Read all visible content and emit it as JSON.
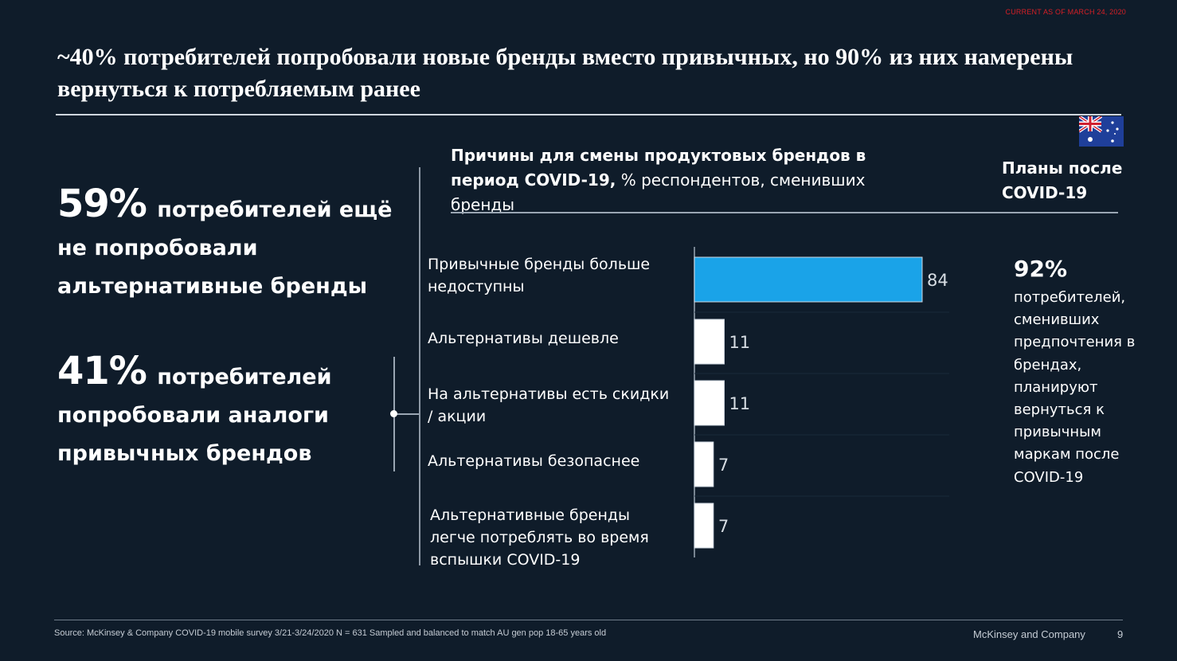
{
  "header": {
    "stamp": "CURRENT AS OF MARCH 24, 2020",
    "title": "~40% потребителей попробовали новые бренды вместо привычных, но 90% из них намерены вернуться к потребляемым ранее"
  },
  "left": {
    "stat1": {
      "pct": "59%",
      "text": "потребителей ещё не попробовали альтернативные бренды"
    },
    "stat2": {
      "pct": "41%",
      "text": "потребителей попробовали аналоги привычных брендов"
    }
  },
  "chart_header": {
    "title_bold": "Причины для смены продуктовых брендов в период COVID-19,",
    "title_rest": " % респондентов, сменивших бренды"
  },
  "plans": {
    "title": "Планы после COVID-19",
    "pct": "92%",
    "text": "потребителей, сменивших предпочтения в брендах, планируют вернуться к привычным маркам после COVID-19"
  },
  "colors": {
    "background": "#0f1c2a",
    "highlight_bar": "#1aa3e8",
    "bar": "#ffffff",
    "stamp": "#d61f26"
  },
  "chart_data": {
    "type": "bar",
    "orientation": "horizontal",
    "title": "Причины для смены продуктовых брендов в период COVID-19, % респондентов, сменивших бренды",
    "categories": [
      "Привычные бренды больше недоступны",
      "Альтернативы дешевле",
      "На альтернативы есть скидки / акции",
      "Альтернативы безопаснее",
      "Альтернативные бренды легче потреблять во время вспышки COVID-19"
    ],
    "values": [
      84,
      11,
      11,
      7,
      7
    ],
    "value_labels": [
      "84",
      "11",
      "11",
      "7",
      "7"
    ],
    "highlight_index": 0,
    "xlim": [
      0,
      100
    ]
  },
  "footer": {
    "source": "Source: McKinsey & Company COVID-19 mobile survey 3/21-3/24/2020 N = 631 Sampled and balanced to match AU gen pop 18-65 years old",
    "brand": "McKinsey and Company",
    "page": "9"
  }
}
